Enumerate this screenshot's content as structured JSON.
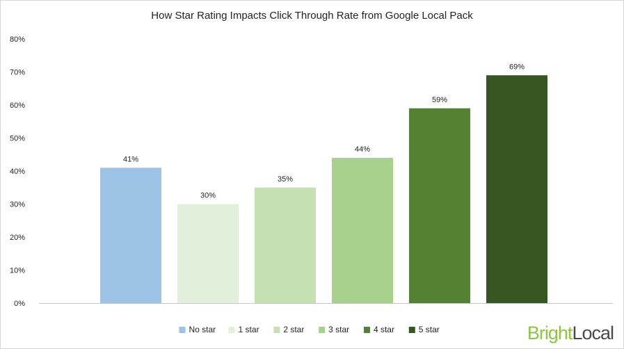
{
  "chart_data": {
    "type": "bar",
    "title": "How Star Rating Impacts Click Through Rate from Google Local Pack",
    "xlabel": "",
    "ylabel": "",
    "categories": [
      "No star",
      "1 star",
      "2 star",
      "3 star",
      "4 star",
      "5 star"
    ],
    "values": [
      41,
      30,
      35,
      44,
      59,
      69
    ],
    "value_labels": [
      "41%",
      "30%",
      "35%",
      "44%",
      "59%",
      "69%"
    ],
    "ylim": [
      0,
      80
    ],
    "yticks": [
      0,
      10,
      20,
      30,
      40,
      50,
      60,
      70,
      80
    ],
    "ytick_labels": [
      "0%",
      "10%",
      "20%",
      "30%",
      "40%",
      "50%",
      "60%",
      "70%",
      "80%"
    ],
    "colors": [
      "#9dc3e6",
      "#e2efda",
      "#c6e0b4",
      "#a9d18e",
      "#548235",
      "#375623"
    ],
    "grid": false,
    "legend_position": "bottom"
  },
  "brand": {
    "part1": "Bright",
    "part2": "Local"
  }
}
